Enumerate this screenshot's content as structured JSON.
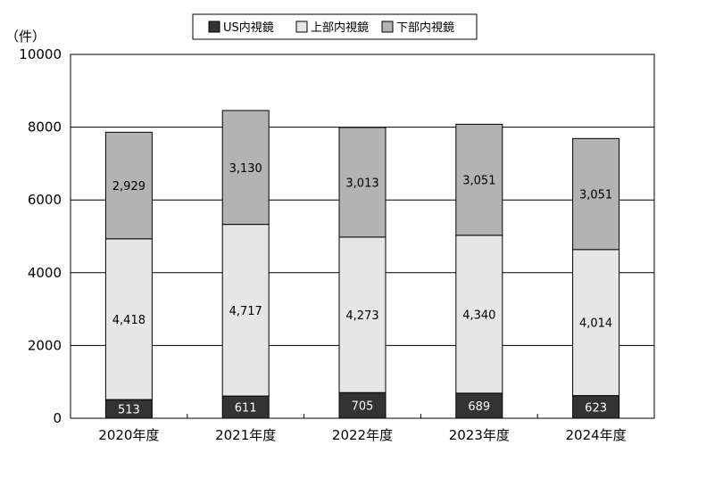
{
  "chart_data": {
    "type": "bar",
    "stacked": true,
    "unit_label": "（件）",
    "categories": [
      "2020年度",
      "2021年度",
      "2022年度",
      "2023年度",
      "2024年度"
    ],
    "series": [
      {
        "name": "US内視鏡",
        "color": "#333333",
        "values": [
          513,
          611,
          705,
          689,
          623
        ],
        "labels": [
          "513",
          "611",
          "705",
          "689",
          "623"
        ]
      },
      {
        "name": "上部内視鏡",
        "color": "#e6e6e6",
        "values": [
          4418,
          4717,
          4273,
          4340,
          4014
        ],
        "labels": [
          "4,418",
          "4,717",
          "4,273",
          "4,340",
          "4,014"
        ]
      },
      {
        "name": "下部内視鏡",
        "color": "#b3b3b3",
        "values": [
          2929,
          3130,
          3013,
          3051,
          3051
        ],
        "labels": [
          "2,929",
          "3,130",
          "3,013",
          "3,051",
          "3,051"
        ]
      }
    ],
    "ylim": [
      0,
      10000
    ],
    "yticks": [
      0,
      2000,
      4000,
      6000,
      8000,
      10000
    ],
    "grid": true,
    "legend_position": "top-center"
  }
}
